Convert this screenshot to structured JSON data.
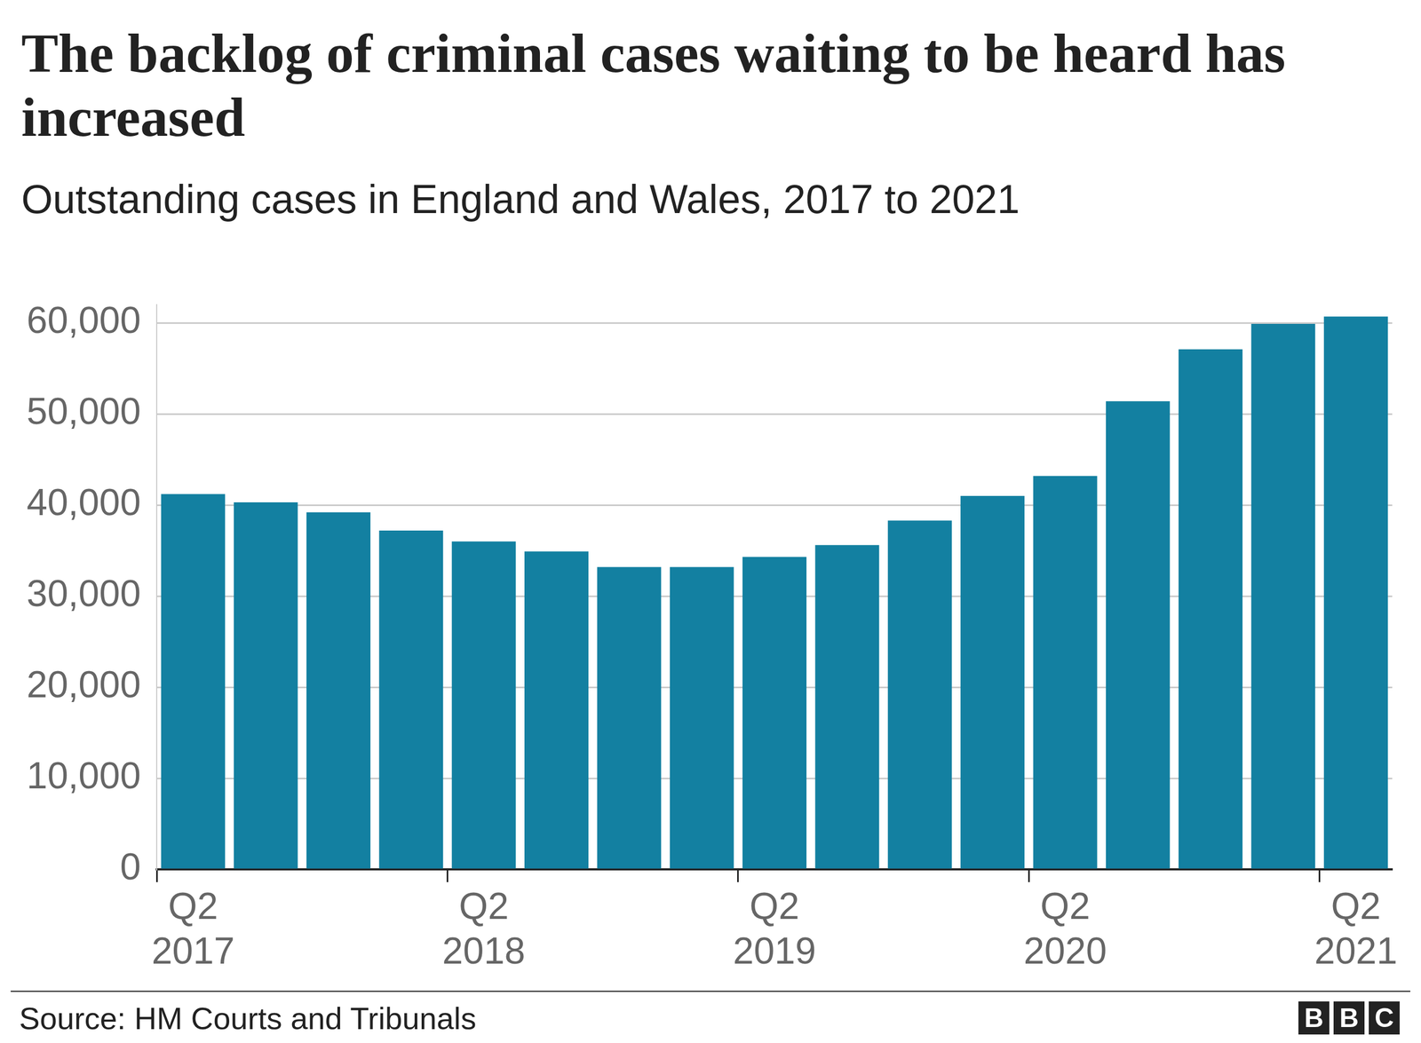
{
  "chart_data": {
    "type": "bar",
    "title": "The backlog of criminal cases waiting to be heard has increased",
    "subtitle": "Outstanding cases in England and Wales, 2017 to 2021",
    "source": "Source: HM Courts and Tribunals",
    "logo": "BBC",
    "categories": [
      "Q2 2017",
      null,
      null,
      null,
      "Q2 2018",
      null,
      null,
      null,
      "Q2 2019",
      null,
      null,
      null,
      "Q2 2020",
      null,
      null,
      null,
      "Q2 2021"
    ],
    "values": [
      41200,
      40300,
      39200,
      37200,
      36000,
      34900,
      33200,
      33200,
      34300,
      35600,
      38300,
      41000,
      43200,
      51400,
      57100,
      59900,
      60700
    ],
    "color": "#1380a1",
    "ylim": [
      0,
      62000
    ],
    "yticks": [
      0,
      {
        "value": 10000,
        "label": "10,000"
      },
      {
        "value": 20000,
        "label": "20,000"
      },
      {
        "value": 30000,
        "label": "30,000"
      },
      {
        "value": 40000,
        "label": "40,000"
      },
      {
        "value": 50000,
        "label": "50,000"
      },
      {
        "value": 60000,
        "label": "60,000"
      }
    ],
    "grid": true
  }
}
